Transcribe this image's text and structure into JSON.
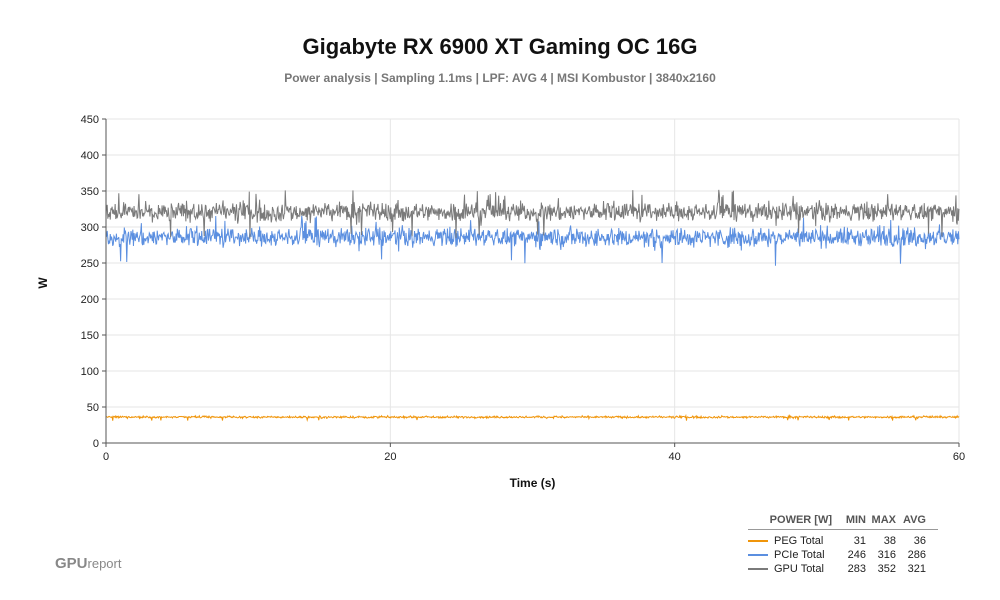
{
  "chart_data": {
    "type": "line",
    "title": "Gigabyte RX 6900 XT Gaming OC 16G",
    "subtitle": "Power analysis | Sampling 1.1ms | LPF: AVG 4 |  MSI Kombustor | 3840x2160",
    "xlabel": "Time (s)",
    "ylabel": "W",
    "xlim": [
      0,
      60
    ],
    "ylim": [
      0,
      450
    ],
    "x_ticks": [
      0,
      20,
      40,
      60
    ],
    "y_ticks": [
      0,
      50,
      100,
      150,
      200,
      250,
      300,
      350,
      400,
      450
    ],
    "grid": true,
    "legend_position": "bottom-right",
    "series": [
      {
        "name": "PEG Total",
        "color": "#f0950a",
        "min": 31,
        "max": 38,
        "avg": 36
      },
      {
        "name": "PCIe Total",
        "color": "#5b8fe0",
        "min": 246,
        "max": 316,
        "avg": 286
      },
      {
        "name": "GPU Total",
        "color": "#7a7a7a",
        "min": 283,
        "max": 352,
        "avg": 321
      }
    ]
  },
  "legend": {
    "header_name": "POWER [W]",
    "header_min": "MIN",
    "header_max": "MAX",
    "header_avg": "AVG"
  },
  "logo": {
    "main": "GPU",
    "small": "report"
  }
}
